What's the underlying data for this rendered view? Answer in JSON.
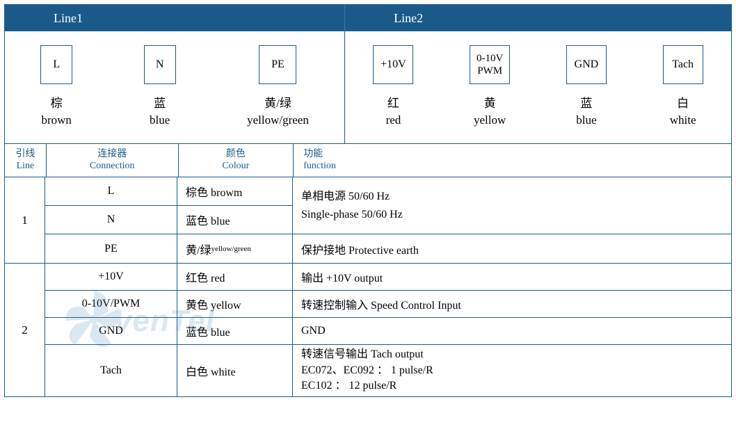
{
  "header": {
    "line1": "Line1",
    "line2": "Line2"
  },
  "wires": {
    "line1": [
      {
        "box": "L",
        "zh": "棕",
        "en": "brown"
      },
      {
        "box": "N",
        "zh": "蓝",
        "en": "blue"
      },
      {
        "box": "PE",
        "zh": "黄/绿",
        "en": "yellow/green"
      }
    ],
    "line2": [
      {
        "box": "+10V",
        "zh": "红",
        "en": "red"
      },
      {
        "box": "0-10V\nPWM",
        "zh": "黄",
        "en": "yellow"
      },
      {
        "box": "GND",
        "zh": "蓝",
        "en": "blue"
      },
      {
        "box": "Tach",
        "zh": "白",
        "en": "white"
      }
    ]
  },
  "thead": {
    "line": {
      "zh": "引线",
      "en": "Line"
    },
    "conn": {
      "zh": "连接器",
      "en": "Connection"
    },
    "colour": {
      "zh": "颜色",
      "en": "Colour"
    },
    "func": {
      "zh": "功能",
      "en": "function"
    }
  },
  "section1": {
    "num": "1",
    "rows": [
      {
        "conn": "L",
        "colour": "棕色 browm"
      },
      {
        "conn": "N",
        "colour": "蓝色 blue"
      },
      {
        "conn": "PE",
        "colour": "黄/绿",
        "colour_small": "yellow/green"
      }
    ],
    "func_top": {
      "zh": "单相电源 50/60 Hz",
      "en": "Single-phase 50/60 Hz"
    },
    "func_bot": "保护接地 Protective earth"
  },
  "section2": {
    "num": "2",
    "rows": [
      {
        "conn": "+10V",
        "colour": "红色 red",
        "func": "输出 +10V output"
      },
      {
        "conn": "0-10V/PWM",
        "colour": "黄色 yellow",
        "func": "转速控制输入 Speed Control Input"
      },
      {
        "conn": "GND",
        "colour": "蓝色 blue",
        "func": " GND"
      },
      {
        "conn": "Tach",
        "colour": "白色 white",
        "func_lines": [
          "转速信号输出 Tach output",
          "EC072、EC092 ： 1 pulse/R",
          "EC102 ： 12 pulse/R"
        ]
      }
    ]
  },
  "watermark_text": "venTel",
  "colors": {
    "header_bg": "#1a5a8a",
    "header_text": "#ffffff",
    "border": "#1a5a8a",
    "th_text": "#1a5a8a"
  }
}
